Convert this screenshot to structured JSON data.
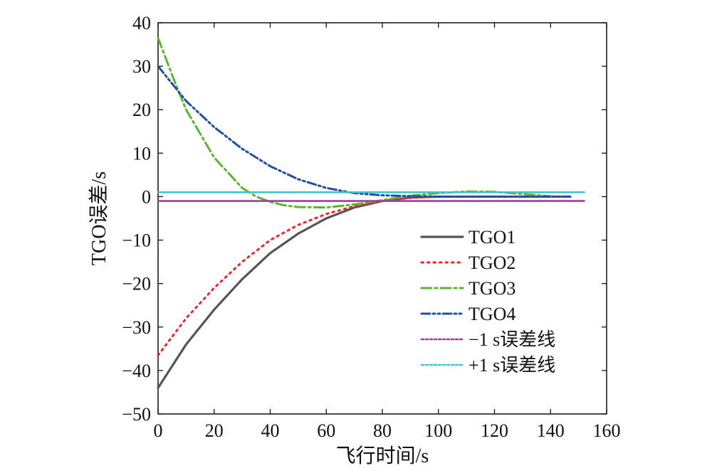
{
  "chart_data": {
    "type": "line",
    "title": "",
    "xlabel": "飞行时间/s",
    "ylabel": "TGO误差/s",
    "xlim": [
      0,
      160
    ],
    "ylim": [
      -50,
      40
    ],
    "xticks": [
      0,
      20,
      40,
      60,
      80,
      100,
      120,
      140,
      160
    ],
    "yticks": [
      40,
      30,
      20,
      10,
      0,
      -10,
      -20,
      -30,
      -40,
      -50
    ],
    "xtick_labels": [
      "0",
      "20",
      "40",
      "60",
      "80",
      "100",
      "120",
      "140",
      "160"
    ],
    "ytick_labels": [
      "40",
      "30",
      "20",
      "10",
      "0",
      "−10",
      "−20",
      "−30",
      "−40",
      "−50"
    ],
    "grid": false,
    "legend_position": "lower-right",
    "series": [
      {
        "name": "TGO1",
        "color": "#555555",
        "style": "solid",
        "x": [
          0,
          10,
          20,
          30,
          40,
          50,
          60,
          70,
          80,
          90,
          100,
          110,
          120,
          130,
          140,
          147
        ],
        "y": [
          -44,
          -34,
          -26,
          -19,
          -13,
          -8.5,
          -5,
          -2.5,
          -1,
          -0.2,
          0,
          0,
          0,
          0,
          0,
          0
        ]
      },
      {
        "name": "TGO2",
        "color": "#e8262b",
        "style": "dotted",
        "x": [
          0,
          10,
          20,
          30,
          40,
          50,
          60,
          70,
          80,
          90,
          100,
          110,
          120,
          130,
          140,
          147
        ],
        "y": [
          -36.5,
          -28,
          -21,
          -15,
          -10,
          -6.5,
          -4,
          -2.2,
          -1,
          -0.3,
          0,
          0,
          0,
          0,
          0,
          0
        ]
      },
      {
        "name": "TGO3",
        "color": "#5ab52e",
        "style": "dashdot",
        "x": [
          0,
          5,
          10,
          20,
          30,
          35,
          40,
          45,
          50,
          60,
          70,
          80,
          90,
          100,
          110,
          120,
          130,
          140
        ],
        "y": [
          36.5,
          28,
          20,
          9,
          2,
          0,
          -1.2,
          -2,
          -2.4,
          -2.5,
          -1.8,
          -0.8,
          0.2,
          0.8,
          1.2,
          1.1,
          0.6,
          0.1
        ]
      },
      {
        "name": "TGO4",
        "color": "#1f4fa3",
        "style": "dashdotdot",
        "x": [
          0,
          10,
          20,
          30,
          40,
          50,
          60,
          70,
          80,
          90,
          100,
          110,
          120,
          130,
          140,
          147
        ],
        "y": [
          30,
          22,
          16,
          11,
          7,
          4,
          2,
          0.8,
          0.3,
          0.1,
          0,
          0,
          0,
          0,
          0,
          0
        ]
      },
      {
        "name": "−1 s误差线",
        "color": "#9b3fa4",
        "style": "hline",
        "x": [
          0,
          152
        ],
        "y": [
          -1,
          -1
        ]
      },
      {
        "name": "+1 s误差线",
        "color": "#3fc4c9",
        "style": "hline",
        "x": [
          0,
          152
        ],
        "y": [
          1,
          1
        ]
      }
    ]
  }
}
